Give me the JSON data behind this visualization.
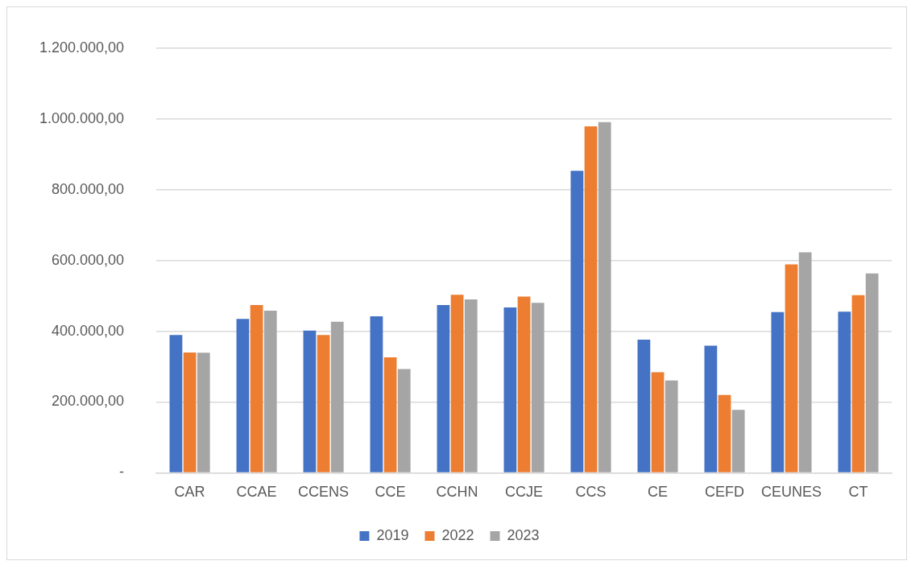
{
  "chart_data": {
    "type": "bar",
    "categories": [
      "CAR",
      "CCAE",
      "CCENS",
      "CCE",
      "CCHN",
      "CCJE",
      "CCS",
      "CE",
      "CEFD",
      "CEUNES",
      "CT"
    ],
    "series": [
      {
        "name": "2019",
        "color": "#4472c4",
        "values": [
          389000,
          435000,
          402000,
          442000,
          474000,
          467000,
          853000,
          376000,
          359000,
          454000,
          455000
        ]
      },
      {
        "name": "2022",
        "color": "#ed7d31",
        "values": [
          340000,
          474000,
          389000,
          326000,
          503000,
          498000,
          979000,
          284000,
          220000,
          589000,
          502000
        ]
      },
      {
        "name": "2023",
        "color": "#a5a5a5",
        "values": [
          339000,
          458000,
          427000,
          293000,
          490000,
          480000,
          991000,
          261000,
          178000,
          623000,
          563000
        ]
      }
    ],
    "ylim": [
      0,
      1200000
    ],
    "yticks": [
      {
        "value": 0,
        "label": "-"
      },
      {
        "value": 200000,
        "label": "200.000,00"
      },
      {
        "value": 400000,
        "label": "400.000,00"
      },
      {
        "value": 600000,
        "label": "600.000,00"
      },
      {
        "value": 800000,
        "label": "800.000,00"
      },
      {
        "value": 1000000,
        "label": "1.000.000,00"
      },
      {
        "value": 1200000,
        "label": "1.200.000,00"
      }
    ],
    "grid": "y",
    "legend": "bottom"
  }
}
